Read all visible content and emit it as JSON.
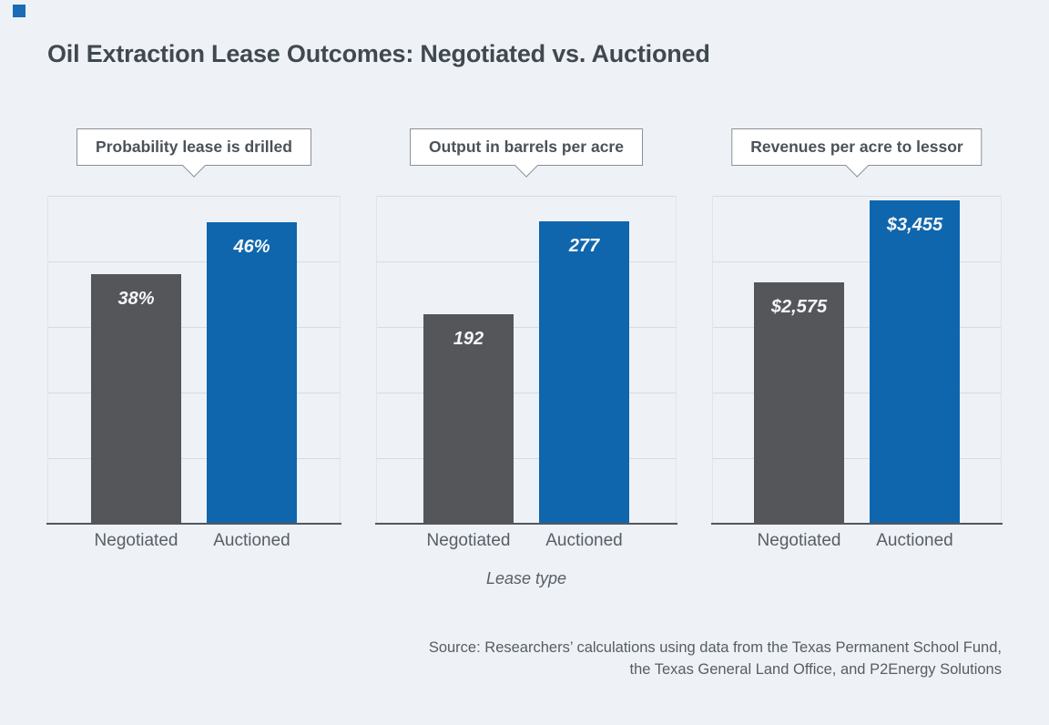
{
  "title": "Oil Extraction Lease Outcomes: Negotiated vs. Auctioned",
  "xlabel": "Lease type",
  "source": {
    "line1": "Source: Researchers’ calculations using data from the Texas Permanent School Fund,",
    "line2": "the Texas General Land Office, and P2Energy Solutions"
  },
  "colors": {
    "background": "#eef2f7",
    "accent": "#1a6cb5",
    "bar_negotiated": "#54565a",
    "bar_auctioned": "#0f66ad",
    "gridline": "#d7dce2",
    "axis_line": "#53575c"
  },
  "chart_data": [
    {
      "type": "bar",
      "title": "Probability lease is drilled",
      "categories": [
        "Negotiated",
        "Auctioned"
      ],
      "values": [
        38,
        46
      ],
      "value_labels": [
        "38%",
        "46%"
      ],
      "ylim": [
        0,
        50
      ],
      "grid": true,
      "gridline_interval": 10
    },
    {
      "type": "bar",
      "title": "Output in barrels per acre",
      "categories": [
        "Negotiated",
        "Auctioned"
      ],
      "values": [
        192,
        277
      ],
      "value_labels": [
        "192",
        "277"
      ],
      "ylim": [
        0,
        300
      ],
      "grid": true,
      "gridline_interval": 60
    },
    {
      "type": "bar",
      "title": "Revenues per acre to lessor",
      "categories": [
        "Negotiated",
        "Auctioned"
      ],
      "values": [
        2575,
        3455
      ],
      "value_labels": [
        "$2,575",
        "$3,455"
      ],
      "ylim": [
        0,
        3500
      ],
      "grid": true,
      "gridline_interval": 700
    }
  ]
}
